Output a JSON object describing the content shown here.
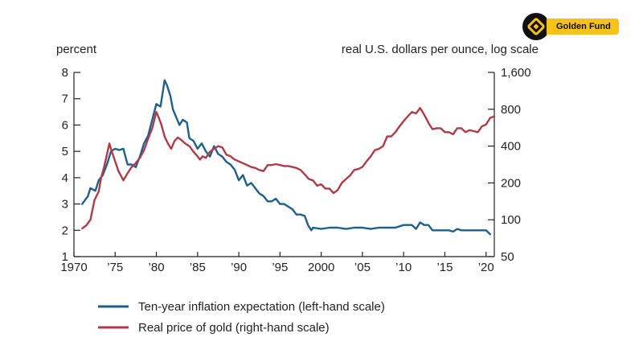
{
  "brand": {
    "name": "Golden Fund",
    "icon": "golden-fund-logo-icon",
    "colors": {
      "logo_bg": "#111111",
      "badge_bg": "#f6c218"
    }
  },
  "chart_data": {
    "type": "line",
    "left_axis_unit": "percent",
    "right_axis_unit": "real U.S. dollars per ounce, log scale",
    "x_ticks": [
      {
        "value": 1970,
        "label": "1970"
      },
      {
        "value": 1975,
        "label": "’75"
      },
      {
        "value": 1980,
        "label": "’80"
      },
      {
        "value": 1985,
        "label": "’85"
      },
      {
        "value": 1990,
        "label": "’90"
      },
      {
        "value": 1995,
        "label": "’95"
      },
      {
        "value": 2000,
        "label": "2000"
      },
      {
        "value": 2005,
        "label": "’05"
      },
      {
        "value": 2010,
        "label": "’10"
      },
      {
        "value": 2015,
        "label": "’15"
      },
      {
        "value": 2020,
        "label": "’20"
      }
    ],
    "xlim": [
      1970,
      2021
    ],
    "y_left": {
      "ylim": [
        1,
        8
      ],
      "ticks": [
        1,
        2,
        3,
        4,
        5,
        6,
        7,
        8
      ]
    },
    "y_right": {
      "scale": "log",
      "ylim": [
        50,
        1600
      ],
      "ticks": [
        {
          "value": 50,
          "label": "50"
        },
        {
          "value": 100,
          "label": "100"
        },
        {
          "value": 200,
          "label": "200"
        },
        {
          "value": 400,
          "label": "400"
        },
        {
          "value": 800,
          "label": "800"
        },
        {
          "value": 1600,
          "label": "1,600"
        }
      ]
    },
    "grid": false,
    "legend_position": "bottom-left",
    "series": [
      {
        "name": "Ten-year inflation expectation (left-hand scale)",
        "axis": "left",
        "color": "#1f5f8b",
        "x": [
          1971,
          1971.7,
          1972,
          1972.6,
          1973,
          1973.5,
          1974,
          1974.5,
          1975,
          1975.5,
          1976,
          1976.5,
          1977,
          1977.5,
          1978,
          1978.5,
          1979,
          1979.5,
          1980,
          1980.5,
          1981,
          1981.3,
          1981.7,
          1982,
          1982.4,
          1982.8,
          1983.2,
          1983.7,
          1984,
          1984.5,
          1985,
          1985.5,
          1986,
          1986.5,
          1987,
          1987.5,
          1988,
          1988.5,
          1989,
          1989.5,
          1990,
          1990.5,
          1991,
          1991.5,
          1992,
          1992.5,
          1993,
          1993.5,
          1994,
          1994.5,
          1995,
          1995.5,
          1996,
          1996.5,
          1997,
          1997.5,
          1998,
          1998.4,
          1998.8,
          1999,
          2000,
          2001,
          2002,
          2003,
          2004,
          2005,
          2006,
          2007,
          2008,
          2009,
          2010,
          2011,
          2011.5,
          2012,
          2012.5,
          2013,
          2013.5,
          2014,
          2015,
          2015.5,
          2016,
          2016.5,
          2017,
          2018,
          2019,
          2020,
          2020.5
        ],
        "y": [
          3.0,
          3.3,
          3.6,
          3.5,
          3.9,
          4.1,
          4.5,
          5.0,
          5.1,
          5.05,
          5.1,
          4.5,
          4.5,
          4.4,
          4.8,
          5.3,
          5.6,
          6.2,
          6.8,
          6.7,
          7.7,
          7.5,
          7.1,
          6.6,
          6.3,
          6.0,
          6.2,
          6.1,
          5.5,
          5.4,
          5.1,
          5.3,
          5.0,
          4.8,
          5.2,
          4.9,
          4.8,
          4.6,
          4.5,
          4.3,
          3.9,
          4.1,
          3.7,
          3.8,
          3.6,
          3.4,
          3.3,
          3.1,
          3.1,
          3.2,
          3.0,
          3.0,
          2.9,
          2.8,
          2.6,
          2.6,
          2.55,
          2.2,
          2.0,
          2.1,
          2.05,
          2.1,
          2.1,
          2.05,
          2.1,
          2.1,
          2.05,
          2.1,
          2.1,
          2.1,
          2.2,
          2.2,
          2.05,
          2.3,
          2.2,
          2.2,
          2.0,
          2.0,
          2.0,
          2.0,
          1.95,
          2.05,
          2.0,
          2.0,
          2.0,
          2.0,
          1.85
        ]
      },
      {
        "name": "Real price of gold (right-hand scale)",
        "axis": "right",
        "color": "#b03a48",
        "x": [
          1971,
          1971.5,
          1972,
          1972.5,
          1973,
          1973.3,
          1973.6,
          1974,
          1974.3,
          1974.6,
          1975,
          1975.4,
          1976,
          1976.5,
          1977,
          1977.5,
          1978,
          1978.5,
          1979,
          1979.5,
          1980,
          1980.3,
          1980.6,
          1981,
          1981.4,
          1981.8,
          1982.2,
          1982.6,
          1983,
          1983.5,
          1984,
          1984.5,
          1985,
          1985.3,
          1985.6,
          1986,
          1986.5,
          1987,
          1987.5,
          1988,
          1988.5,
          1989,
          1989.5,
          1990,
          1990.5,
          1991,
          1991.5,
          1992,
          1992.5,
          1993,
          1993.5,
          1994,
          1994.5,
          1995,
          1995.5,
          1996,
          1996.5,
          1997,
          1997.5,
          1998,
          1998.5,
          1999,
          1999.5,
          2000,
          2000.5,
          2001,
          2001.5,
          2002,
          2002.5,
          2003,
          2003.5,
          2004,
          2004.5,
          2005,
          2005.5,
          2006,
          2006.5,
          2007,
          2007.5,
          2008,
          2008.5,
          2009,
          2009.5,
          2010,
          2010.5,
          2011,
          2011.5,
          2012,
          2012.3,
          2012.6,
          2013,
          2013.5,
          2014,
          2014.5,
          2015,
          2015.5,
          2016,
          2016.5,
          2017,
          2017.5,
          2018,
          2018.5,
          2019,
          2019.5,
          2020,
          2020.5,
          2021
        ],
        "y": [
          85,
          90,
          100,
          145,
          170,
          220,
          260,
          340,
          420,
          360,
          300,
          250,
          210,
          240,
          270,
          290,
          320,
          370,
          460,
          560,
          760,
          680,
          600,
          480,
          420,
          380,
          440,
          470,
          450,
          420,
          400,
          360,
          330,
          310,
          330,
          320,
          360,
          380,
          400,
          390,
          340,
          330,
          310,
          300,
          290,
          280,
          270,
          265,
          255,
          250,
          280,
          280,
          285,
          280,
          275,
          275,
          270,
          265,
          255,
          235,
          215,
          210,
          190,
          195,
          180,
          180,
          165,
          175,
          200,
          215,
          230,
          255,
          260,
          270,
          300,
          330,
          370,
          380,
          400,
          480,
          480,
          520,
          580,
          640,
          700,
          760,
          740,
          820,
          760,
          700,
          620,
          550,
          560,
          560,
          520,
          520,
          500,
          560,
          560,
          520,
          540,
          530,
          520,
          580,
          600,
          680,
          700
        ]
      }
    ]
  }
}
